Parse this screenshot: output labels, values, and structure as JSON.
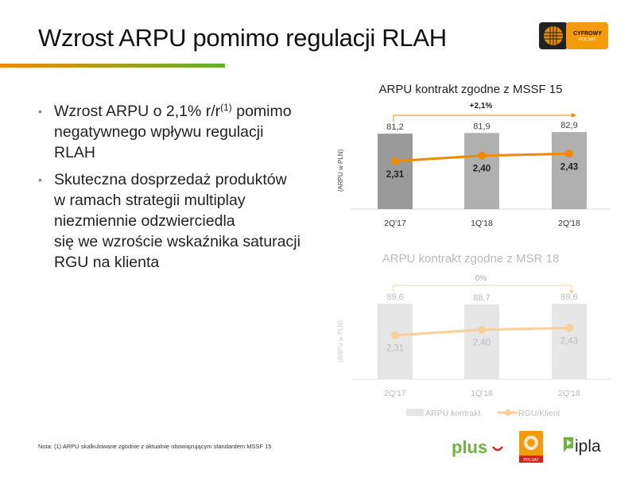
{
  "title": "Wzrost ARPU pomimo regulacji RLAH",
  "logo": {
    "name": "Cyfrowy Polsat",
    "line1": "CYFROWY",
    "line2": "POLSAT"
  },
  "bullets": [
    {
      "lines": [
        "Wzrost ARPU o 2,1% r/r",
        "(1)",
        " pomimo",
        "negatywnego wpływu regulacji",
        "RLAH"
      ]
    },
    {
      "lines": [
        "Skuteczna dosprzedaż produktów",
        "w ramach strategii multiplay",
        "niezmiennie odzwierciedla",
        "się we wzroście wskaźnika saturacji",
        "RGU na klienta"
      ]
    }
  ],
  "note": "Nota:  (1) ARPU skalkulowane zgodnie z aktualnie obowiązującym standardem MSSF 15",
  "footer_logos": [
    "plus",
    "POLSAT",
    "ipla"
  ],
  "colors": {
    "accent": "#f28a00",
    "green": "#5fb031",
    "bar_dark": "#a6a6a6",
    "bar_light": "#e6e6e6",
    "line_light": "#fbcf96"
  },
  "chart_data": [
    {
      "type": "bar+line",
      "title": "ARPU kontrakt zgodne z MSSF 15",
      "ylabel": "(ARPU w PLN)",
      "categories": [
        "2Q'17",
        "1Q'18",
        "2Q'18"
      ],
      "series": [
        {
          "name": "ARPU kontrakt",
          "type": "bar",
          "values": [
            "81,2",
            "81,9",
            "82,9"
          ]
        },
        {
          "name": "RGU/Klient",
          "type": "line",
          "values": [
            "2,31",
            "2,40",
            "2,43"
          ]
        }
      ],
      "change_label": "+2,1%",
      "ylim": [
        0,
        83
      ],
      "y2lim": [
        1.54,
        2.78
      ],
      "style": "active"
    },
    {
      "type": "bar+line",
      "title": "ARPU kontrakt zgodne z MSR 18",
      "ylabel": "(ARPU w PLN)",
      "categories": [
        "2Q'17",
        "1Q'18",
        "2Q'18"
      ],
      "series": [
        {
          "name": "ARPU kontrakt",
          "type": "bar",
          "values": [
            "89,6",
            "88,7",
            "89,6"
          ]
        },
        {
          "name": "RGU/Klient",
          "type": "line",
          "values": [
            "2,31",
            "2,40",
            "2,43"
          ]
        }
      ],
      "change_label": "0%",
      "ylim": [
        0,
        89.6
      ],
      "y2lim": [
        1.6,
        2.82
      ],
      "style": "faded",
      "legend": [
        "ARPU kontrakt",
        "RGU/Klient"
      ]
    }
  ]
}
